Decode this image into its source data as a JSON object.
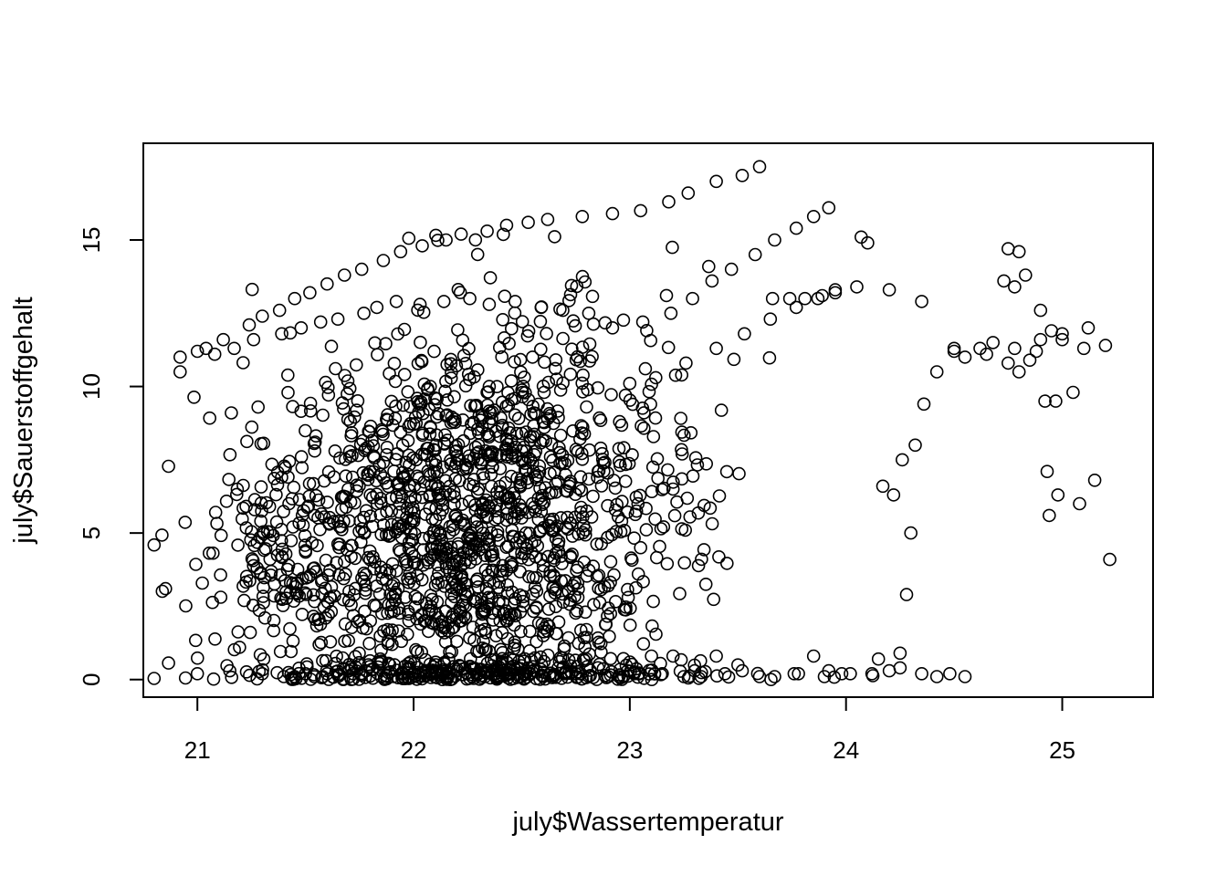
{
  "chart_data": {
    "type": "scatter",
    "title": "",
    "xlabel": "july$Wassertemperatur",
    "ylabel": "july$Sauerstoffgehalt",
    "xlim": [
      20.75,
      25.42
    ],
    "ylim": [
      -0.6,
      18.3
    ],
    "xticks": [
      21,
      22,
      23,
      24,
      25
    ],
    "yticks": [
      0,
      5,
      10,
      15
    ],
    "xtick_labels": [
      "21",
      "22",
      "23",
      "24",
      "25"
    ],
    "ytick_labels": [
      "0",
      "5",
      "10",
      "15"
    ],
    "grid": false,
    "legend": "none",
    "marker": "open-circle",
    "marker_color": "#000000",
    "point_count": 2046,
    "series": [
      {
        "x": [
          20.92,
          21.04,
          21.12,
          21.24,
          21.3,
          21.38,
          21.45,
          21.52,
          21.6,
          21.68,
          21.76,
          21.86,
          21.94,
          22.04,
          22.15,
          22.22,
          22.34,
          22.43,
          22.53,
          22.62,
          22.78,
          22.92,
          23.05,
          23.18,
          23.27,
          23.4,
          23.52,
          23.6,
          20.92,
          21.0,
          21.08,
          21.17,
          21.26,
          21.39,
          21.48,
          21.57,
          21.65,
          21.77,
          21.83,
          21.92,
          22.03,
          22.14,
          22.26,
          22.35,
          22.47,
          22.59,
          22.69,
          22.81,
          22.92,
          23.06,
          23.19,
          23.29,
          23.38,
          23.47,
          23.58,
          23.67,
          23.77,
          23.85,
          23.92,
          23.66,
          23.74,
          23.81,
          23.89,
          23.95,
          24.07,
          24.1,
          21.5,
          21.65,
          21.8,
          21.95,
          22.1,
          22.3,
          22.5,
          22.62,
          22.8,
          22.98,
          23.12,
          23.26,
          23.4,
          23.53,
          23.65,
          23.77,
          23.87,
          23.95,
          24.05,
          24.2,
          24.35,
          24.5,
          24.65,
          24.78,
          24.9,
          25.0,
          25.12,
          25.2,
          24.75,
          24.8,
          24.83,
          24.78,
          24.73,
          24.9,
          24.95,
          25.0,
          25.1,
          25.05,
          24.97,
          24.93,
          24.98,
          25.08,
          25.15,
          25.22,
          21.4,
          21.5,
          21.58,
          21.7,
          21.85,
          22.0,
          22.1,
          22.27,
          22.45,
          22.6,
          22.75,
          22.9,
          23.02,
          23.15,
          23.25,
          23.33,
          23.44,
          23.52,
          23.6,
          23.67,
          23.76,
          23.9,
          23.98,
          24.12,
          24.2,
          24.25,
          24.28,
          24.3,
          24.22,
          24.17,
          24.26,
          24.32,
          24.36,
          24.42,
          24.5,
          24.55,
          24.62,
          24.68,
          24.75,
          24.8,
          24.85,
          24.88,
          24.92,
          24.94,
          21.0,
          21.15,
          21.3,
          21.45,
          21.6,
          21.78,
          21.95,
          22.1,
          22.3,
          22.5,
          22.7,
          22.95,
          23.0,
          23.1,
          23.2,
          23.3,
          23.4,
          23.5,
          23.78,
          23.85,
          23.92,
          24.02,
          24.15,
          24.25,
          24.35,
          24.42,
          24.48,
          24.55,
          21.8,
          21.9,
          22.0,
          22.1,
          22.2,
          22.3,
          22.4,
          22.5,
          22.6,
          21.85,
          22.05,
          22.25,
          22.45,
          22.65,
          21.95,
          22.15,
          22.35,
          22.55,
          22.12,
          22.32,
          22.52,
          21.75,
          21.9,
          22.08,
          22.22,
          22.4,
          22.6,
          22.76,
          22.9,
          23.05,
          23.2
        ],
        "y": [
          10.5,
          11.3,
          11.6,
          12.1,
          12.4,
          12.6,
          13.0,
          13.2,
          13.5,
          13.8,
          14.0,
          14.3,
          14.6,
          14.8,
          15.0,
          15.2,
          15.3,
          15.5,
          15.6,
          15.7,
          15.8,
          15.9,
          16.0,
          16.3,
          16.6,
          17.0,
          17.2,
          17.5,
          11.0,
          11.2,
          11.1,
          11.3,
          11.6,
          11.8,
          12.0,
          12.2,
          12.3,
          12.5,
          12.7,
          12.9,
          12.8,
          12.9,
          13.0,
          12.8,
          12.9,
          12.7,
          12.6,
          12.5,
          12.0,
          12.2,
          12.5,
          13.0,
          13.6,
          14.0,
          14.5,
          15.0,
          15.4,
          15.8,
          16.1,
          13.0,
          13.0,
          13.0,
          13.1,
          13.3,
          15.1,
          14.9,
          4.4,
          5.4,
          6.3,
          6.9,
          7.5,
          8.0,
          8.4,
          8.9,
          9.3,
          9.7,
          10.3,
          10.8,
          11.3,
          11.8,
          12.3,
          12.7,
          13.0,
          13.2,
          13.4,
          13.3,
          12.9,
          11.3,
          11.1,
          11.3,
          11.6,
          11.8,
          12.0,
          11.4,
          14.7,
          14.6,
          13.8,
          13.4,
          13.6,
          12.6,
          11.9,
          11.6,
          11.3,
          9.8,
          9.5,
          7.1,
          6.3,
          6.0,
          6.8,
          4.1,
          0.1,
          0.2,
          0.1,
          0.3,
          0.1,
          0.2,
          0.2,
          0.1,
          0.2,
          0.1,
          0.2,
          0.1,
          0.2,
          0.2,
          0.1,
          0.1,
          0.2,
          0.3,
          0.1,
          0.1,
          0.2,
          0.1,
          0.2,
          0.2,
          0.3,
          0.9,
          2.9,
          5.0,
          6.3,
          6.6,
          7.5,
          8.0,
          9.4,
          10.5,
          11.2,
          11.0,
          11.3,
          11.5,
          10.8,
          10.5,
          10.9,
          11.2,
          9.5,
          5.6,
          0.2,
          0.3,
          0.2,
          0.1,
          0.2,
          0.3,
          0.2,
          0.3,
          0.2,
          0.1,
          0.2,
          0.1,
          0.6,
          0.8,
          0.8,
          0.3,
          0.8,
          0.5,
          0.2,
          0.8,
          0.3,
          0.2,
          0.7,
          0.4,
          0.2,
          0.1,
          0.2,
          0.1,
          2.0,
          3.2,
          4.0,
          4.8,
          5.5,
          6.5,
          7.2,
          7.8,
          8.8,
          1.0,
          2.0,
          3.0,
          4.0,
          3.5,
          8.0,
          9.0,
          10.0,
          11.0,
          5.0,
          6.0,
          5.0,
          0.5,
          1.2,
          2.5,
          3.5,
          2.0,
          1.5,
          2.8,
          3.2,
          4.5,
          6.5
        ]
      }
    ],
    "dense_clusters": [
      {
        "x_mean": 22.25,
        "x_sd": 0.35,
        "y_mean": 5.2,
        "y_sd": 3.4,
        "count": 1050
      },
      {
        "x_mean": 21.55,
        "x_sd": 0.3,
        "y_mean": 4.0,
        "y_sd": 2.4,
        "count": 320
      },
      {
        "x_mean": 22.85,
        "x_sd": 0.3,
        "y_mean": 6.5,
        "y_sd": 3.2,
        "count": 240
      },
      {
        "x_mean": 22.4,
        "x_sd": 0.55,
        "y_mean": 0.2,
        "y_sd": 0.2,
        "count": 220
      }
    ]
  }
}
